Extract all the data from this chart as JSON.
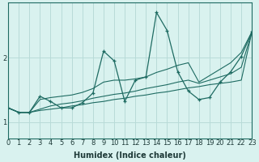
{
  "xlabel": "Humidex (Indice chaleur)",
  "background_color": "#d9f2ef",
  "line_color": "#1e6b62",
  "grid_color": "#b8dbd8",
  "x_data": [
    0,
    1,
    2,
    3,
    4,
    5,
    6,
    7,
    8,
    9,
    10,
    11,
    12,
    13,
    14,
    15,
    16,
    17,
    18,
    19,
    20,
    21,
    22,
    23
  ],
  "y_main": [
    1.22,
    1.15,
    1.15,
    1.4,
    1.32,
    1.22,
    1.22,
    1.3,
    1.45,
    2.1,
    1.95,
    1.32,
    1.65,
    1.7,
    2.7,
    2.42,
    1.78,
    1.48,
    1.35,
    1.38,
    1.62,
    1.78,
    2.02,
    2.4
  ],
  "y_lower": [
    1.22,
    1.15,
    1.15,
    1.18,
    1.2,
    1.22,
    1.25,
    1.27,
    1.3,
    1.32,
    1.35,
    1.37,
    1.4,
    1.42,
    1.45,
    1.47,
    1.5,
    1.53,
    1.55,
    1.58,
    1.6,
    1.62,
    1.65,
    2.4
  ],
  "y_mid": [
    1.22,
    1.15,
    1.15,
    1.2,
    1.25,
    1.28,
    1.3,
    1.33,
    1.37,
    1.4,
    1.43,
    1.45,
    1.48,
    1.52,
    1.55,
    1.58,
    1.62,
    1.65,
    1.6,
    1.65,
    1.7,
    1.75,
    1.85,
    2.4
  ],
  "y_upper": [
    1.22,
    1.15,
    1.15,
    1.35,
    1.38,
    1.4,
    1.42,
    1.46,
    1.52,
    1.62,
    1.65,
    1.65,
    1.67,
    1.7,
    1.77,
    1.82,
    1.88,
    1.92,
    1.62,
    1.72,
    1.82,
    1.92,
    2.08,
    2.4
  ],
  "yticks": [
    1,
    2
  ],
  "xtick_labels": [
    "0",
    "1",
    "2",
    "3",
    "4",
    "5",
    "6",
    "7",
    "8",
    "9",
    "10",
    "11",
    "12",
    "13",
    "14",
    "15",
    "16",
    "17",
    "18",
    "19",
    "20",
    "21",
    "22",
    "23"
  ],
  "xlim": [
    0,
    23
  ],
  "ylim": [
    0.75,
    2.85
  ],
  "tick_fontsize": 6,
  "xlabel_fontsize": 7
}
